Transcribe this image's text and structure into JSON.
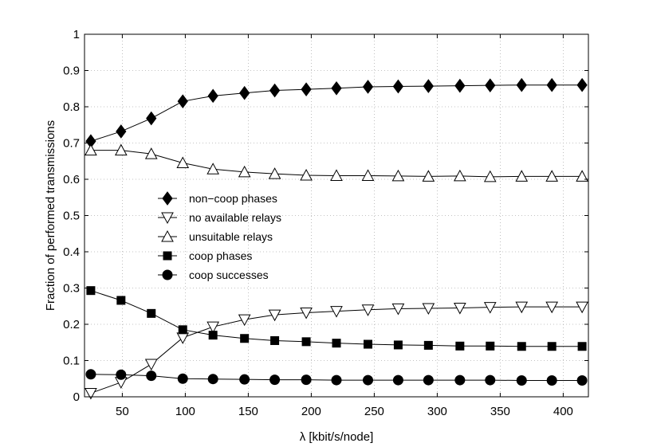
{
  "chart_data": {
    "type": "line",
    "title": "",
    "xlabel": "λ   [kbit/s/node]",
    "ylabel": "Fraction of performed transmissions",
    "xlim": [
      20,
      420
    ],
    "ylim": [
      0,
      1
    ],
    "xticks": [
      50,
      100,
      150,
      200,
      250,
      300,
      350,
      400
    ],
    "yticks": [
      0,
      0.1,
      0.2,
      0.3,
      0.4,
      0.5,
      0.6,
      0.7,
      0.8,
      0.9,
      1
    ],
    "ytick_labels": [
      "0",
      "0.1",
      "0.2",
      "0.3",
      "0.4",
      "0.5",
      "0.6",
      "0.7",
      "0.8",
      "0.9",
      "1"
    ],
    "grid": true,
    "legend_position": "center-left",
    "x": [
      25,
      49,
      73,
      98,
      122,
      147,
      171,
      196,
      220,
      245,
      269,
      293,
      318,
      342,
      367,
      391,
      415
    ],
    "series": [
      {
        "name": "non−coop phases",
        "marker": "diamond-filled",
        "values": [
          0.705,
          0.732,
          0.768,
          0.815,
          0.83,
          0.838,
          0.845,
          0.848,
          0.851,
          0.855,
          0.856,
          0.857,
          0.858,
          0.859,
          0.86,
          0.86,
          0.86
        ]
      },
      {
        "name": "no available relays",
        "marker": "triangle-down-open",
        "values": [
          0.01,
          0.04,
          0.09,
          0.163,
          0.193,
          0.213,
          0.226,
          0.232,
          0.236,
          0.24,
          0.243,
          0.244,
          0.245,
          0.247,
          0.248,
          0.248,
          0.248
        ]
      },
      {
        "name": "unsuitable relays",
        "marker": "triangle-up-open",
        "values": [
          0.68,
          0.68,
          0.67,
          0.645,
          0.628,
          0.62,
          0.615,
          0.611,
          0.61,
          0.61,
          0.609,
          0.608,
          0.609,
          0.607,
          0.608,
          0.608,
          0.608
        ]
      },
      {
        "name": "coop phases",
        "marker": "square-filled",
        "values": [
          0.293,
          0.266,
          0.23,
          0.185,
          0.17,
          0.161,
          0.155,
          0.152,
          0.148,
          0.145,
          0.143,
          0.142,
          0.14,
          0.14,
          0.139,
          0.139,
          0.139
        ]
      },
      {
        "name": "coop successes",
        "marker": "circle-filled",
        "values": [
          0.062,
          0.061,
          0.058,
          0.05,
          0.049,
          0.048,
          0.047,
          0.047,
          0.046,
          0.046,
          0.046,
          0.046,
          0.046,
          0.046,
          0.045,
          0.045,
          0.045
        ]
      }
    ]
  }
}
